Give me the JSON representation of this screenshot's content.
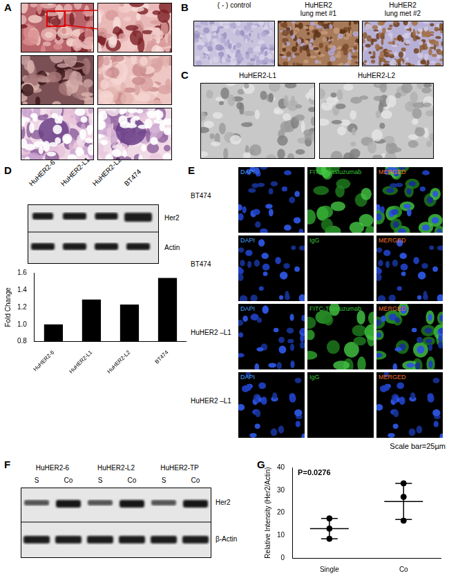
{
  "panels": {
    "A": {
      "label": "A"
    },
    "B": {
      "label": "B",
      "images": [
        [
          "( - ) control"
        ],
        [
          "HuHER2",
          "lung met #1"
        ],
        [
          "HuHER2",
          "lung met #2"
        ]
      ]
    },
    "C": {
      "label": "C",
      "images": [
        "HuHER2-L1",
        "HuHER2-L2"
      ]
    },
    "D": {
      "label": "D",
      "lanes": [
        "HuHER2-6",
        "HuHER2-L1",
        "HuHER2-L2",
        "BT474"
      ],
      "bands": [
        "Her2",
        "Actin"
      ]
    },
    "E": {
      "label": "E",
      "rows": [
        {
          "label": "BT474",
          "stains": [
            "DAPI",
            "FITC-Trastuzumab",
            "MERGED"
          ]
        },
        {
          "label": "BT474",
          "stains": [
            "DAPI",
            "IgG",
            "MERGED"
          ]
        },
        {
          "label": "HuHER2 –L1",
          "stains": [
            "DAPI",
            "FITC-Trastuzumab",
            "MERGED"
          ]
        },
        {
          "label": "HuHER2 –L1",
          "stains": [
            "DAPI",
            "IgG",
            "MERGED"
          ]
        }
      ],
      "scale_bar": "Scale bar=25µm"
    },
    "F": {
      "label": "F",
      "groups": [
        "HuHER2-6",
        "HuHER2-L2",
        "HuHER2-TP"
      ],
      "lanes": [
        "S",
        "Co"
      ],
      "bands": [
        "Her2",
        "β-Actin"
      ]
    },
    "G": {
      "label": "G"
    }
  },
  "chart_data": [
    {
      "type": "bar",
      "categories": [
        "HuHER2-6",
        "HuHER2-L1",
        "HuHER2-L2",
        "BT474"
      ],
      "values": [
        1.0,
        1.29,
        1.23,
        1.54
      ],
      "color": "#000000",
      "ylim": [
        0.8,
        1.6
      ],
      "yticks": [
        0.8,
        {
          "value": 1.0,
          "label": "1.0"
        },
        1.2,
        1.4,
        1.6
      ],
      "y_label": "Fold Change",
      "grid": false
    },
    {
      "type": "scatter",
      "categories": [
        "Single",
        "Co"
      ],
      "values": [
        [
          17.5,
          13,
          8.5
        ],
        [
          33,
          27,
          16.5
        ]
      ],
      "mean": [
        13,
        25
      ],
      "error": [
        4.5,
        8
      ],
      "ylim": [
        0,
        40
      ],
      "yticks": [
        0,
        10,
        20,
        30,
        40
      ],
      "y_label": "Relative Intensity (Her2/Actin)",
      "annotation": "P=0.0276",
      "color": "#000000",
      "marker": "circle",
      "grid": false
    }
  ]
}
